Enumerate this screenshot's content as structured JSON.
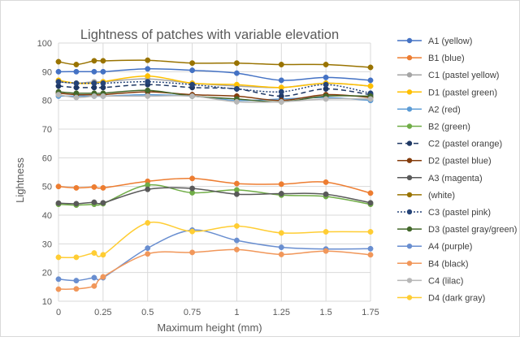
{
  "chart_data": {
    "type": "line",
    "title": "Lightness of patches with variable elevation",
    "xlabel": "Maximum height (mm)",
    "ylabel": "Lightness",
    "x": [
      0,
      0.1,
      0.2,
      0.25,
      0.5,
      0.75,
      1,
      1.25,
      1.5,
      1.75
    ],
    "xticks": [
      "0",
      "0.25",
      "0.5",
      "0.75",
      "1",
      "1.25",
      "1.5",
      "1.75"
    ],
    "xtick_values": [
      0,
      0.25,
      0.5,
      0.75,
      1,
      1.25,
      1.5,
      1.75
    ],
    "xlim": [
      0,
      1.75
    ],
    "yticks": [
      10,
      20,
      30,
      40,
      50,
      60,
      70,
      80,
      90,
      100
    ],
    "ylim": [
      10,
      100
    ],
    "grid": true,
    "legend_position": "right",
    "series": [
      {
        "name": "A1 (yellow)",
        "color": "#4472C4",
        "marker": true,
        "dash": "solid",
        "values": [
          90,
          90,
          90,
          90,
          91,
          90.5,
          89.5,
          87,
          88,
          87
        ]
      },
      {
        "name": "B1 (blue)",
        "color": "#ED7D31",
        "marker": true,
        "dash": "solid",
        "values": [
          50,
          49.5,
          49.8,
          49.5,
          51.8,
          52.8,
          51,
          50.8,
          51.5,
          47.7
        ]
      },
      {
        "name": "C1 (pastel yellow)",
        "color": "#A5A5A5",
        "marker": true,
        "dash": "solid",
        "values": [
          86.5,
          86,
          86.5,
          86.5,
          87.5,
          86,
          85,
          84.5,
          86,
          85
        ]
      },
      {
        "name": "D1 (pastel green)",
        "color": "#FFC000",
        "marker": true,
        "dash": "solid",
        "values": [
          87,
          86,
          86,
          86.5,
          88.5,
          86,
          85.5,
          84.5,
          86,
          85
        ]
      },
      {
        "name": "A2 (red)",
        "color": "#5B9BD5",
        "marker": true,
        "dash": "solid",
        "values": [
          81.5,
          81.5,
          81.5,
          81.5,
          82,
          81.5,
          80,
          80.5,
          81,
          80
        ]
      },
      {
        "name": "B2 (green)",
        "color": "#70AD47",
        "marker": true,
        "dash": "solid",
        "values": [
          43.8,
          43.5,
          43.8,
          44,
          50.5,
          47.8,
          48.8,
          47,
          46.5,
          43.8
        ]
      },
      {
        "name": "C2 (pastel orange)",
        "color": "#1F3864",
        "marker": true,
        "dash": "dashed",
        "values": [
          85,
          84.5,
          84.5,
          84.5,
          85.5,
          84.5,
          84,
          81.5,
          84,
          82
        ]
      },
      {
        "name": "D2 (pastel blue)",
        "color": "#843C0C",
        "marker": true,
        "dash": "solid",
        "values": [
          82.5,
          82,
          82,
          82,
          83,
          82,
          81.5,
          80,
          82,
          81
        ]
      },
      {
        "name": "A3 (magenta)",
        "color": "#595959",
        "marker": true,
        "dash": "solid",
        "values": [
          44.2,
          44,
          44.5,
          44.3,
          49,
          49.3,
          47.3,
          47.5,
          47.3,
          44.3
        ]
      },
      {
        "name": "(white)",
        "color": "#997300",
        "marker": true,
        "dash": "solid",
        "values": [
          93.5,
          92.5,
          93.8,
          93.8,
          94,
          93,
          93,
          92.5,
          92.5,
          91.5
        ]
      },
      {
        "name": "C3 (pastel pink)",
        "color": "#264478",
        "marker": true,
        "dash": "dotted",
        "values": [
          86.5,
          86,
          86,
          86,
          86.5,
          85.5,
          84,
          83,
          85.5,
          82.5
        ]
      },
      {
        "name": "D3 (pastel gray/green)",
        "color": "#43682B",
        "marker": true,
        "dash": "solid",
        "values": [
          83,
          82.5,
          82.5,
          82.5,
          83.5,
          81.5,
          80.5,
          79.5,
          81.5,
          81.5
        ]
      },
      {
        "name": "A4 (purple)",
        "color": "#698ED0",
        "marker": true,
        "dash": "solid",
        "values": [
          17.7,
          17.2,
          18.2,
          18.2,
          28.5,
          34.8,
          31.2,
          28.8,
          28.2,
          28.3
        ]
      },
      {
        "name": "B4 (black)",
        "color": "#F1975A",
        "marker": true,
        "dash": "solid",
        "values": [
          14.2,
          14.3,
          15.3,
          18.5,
          26.5,
          27,
          28,
          26.3,
          27.5,
          26.2
        ]
      },
      {
        "name": "C4 (lilac)",
        "color": "#B7B7B7",
        "marker": true,
        "dash": "solid",
        "values": [
          82,
          81,
          81.5,
          81.5,
          81.5,
          81.5,
          79.5,
          79.5,
          80.5,
          80.5
        ]
      },
      {
        "name": "D4 (dark gray)",
        "color": "#FFCD33",
        "marker": true,
        "dash": "solid",
        "values": [
          25.3,
          25.3,
          26.8,
          26.2,
          37.3,
          34.3,
          36.2,
          33.8,
          34.2,
          34.2
        ]
      }
    ]
  }
}
